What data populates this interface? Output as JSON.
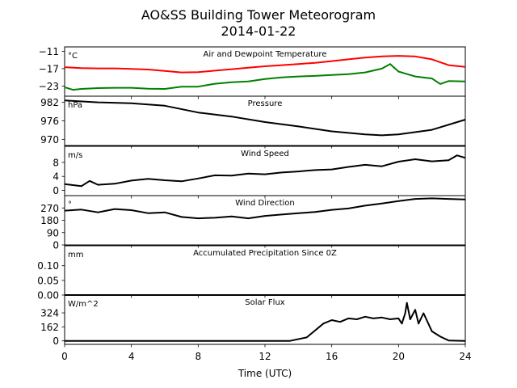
{
  "figure": {
    "title": "AO&SS Building Tower Meteorogram",
    "subtitle": "2014-01-22"
  },
  "chart_data": {
    "type": "line",
    "x_axis": {
      "label": "Time (UTC)",
      "range": [
        0,
        24
      ],
      "ticks": [
        0,
        4,
        8,
        12,
        16,
        20,
        24
      ],
      "tick_labels": [
        "0",
        "4",
        "8",
        "12",
        "16",
        "20",
        "24"
      ]
    },
    "colors": {
      "air": "#ff0000",
      "dewpoint": "#008000",
      "default": "#000000"
    },
    "panels": [
      {
        "id": "temperature",
        "title": "Air and Dewpoint Temperature",
        "unit": "°C",
        "ylim": [
          -26.5,
          -9.5
        ],
        "yticks": [
          -11,
          -17,
          -23
        ],
        "ytick_labels": [
          "−11",
          "−17",
          "−23"
        ],
        "series": [
          {
            "key": "air",
            "color": "#ff0000",
            "x": [
              0,
              1,
              2,
              3,
              4,
              5,
              6,
              7,
              8,
              9,
              10,
              11,
              12,
              13,
              14,
              15,
              16,
              17,
              18,
              19,
              20,
              21,
              22,
              23,
              24
            ],
            "y": [
              -16.5,
              -16.8,
              -16.9,
              -16.9,
              -17.1,
              -17.3,
              -17.8,
              -18.3,
              -18.2,
              -17.7,
              -17.2,
              -16.7,
              -16.2,
              -15.8,
              -15.4,
              -15.0,
              -14.4,
              -13.8,
              -13.2,
              -12.8,
              -12.6,
              -12.8,
              -13.8,
              -15.8,
              -16.4
            ]
          },
          {
            "key": "dewpoint",
            "color": "#008000",
            "x": [
              0,
              0.5,
              1,
              2,
              3,
              4,
              5,
              6,
              7,
              8,
              9,
              10,
              11,
              12,
              13,
              14,
              15,
              16,
              17,
              18,
              19,
              19.5,
              20,
              21,
              22,
              22.5,
              23,
              24
            ],
            "y": [
              -23.4,
              -24.3,
              -24.0,
              -23.7,
              -23.6,
              -23.6,
              -23.9,
              -24.0,
              -23.2,
              -23.2,
              -22.2,
              -21.7,
              -21.4,
              -20.6,
              -20.0,
              -19.7,
              -19.5,
              -19.2,
              -18.9,
              -18.3,
              -17.0,
              -15.4,
              -18.0,
              -19.7,
              -20.4,
              -22.3,
              -21.3,
              -21.4
            ]
          }
        ]
      },
      {
        "id": "pressure",
        "title": "Pressure",
        "unit": "hPa",
        "ylim": [
          968,
          984
        ],
        "yticks": [
          982,
          976,
          970
        ],
        "ytick_labels": [
          "982",
          "976",
          "970"
        ],
        "series": [
          {
            "key": "pressure",
            "color": "#000000",
            "x": [
              0,
              2,
              4,
              6,
              8,
              10,
              12,
              14,
              16,
              18,
              19,
              20,
              22,
              24
            ],
            "y": [
              982.6,
              982.0,
              981.7,
              980.9,
              978.7,
              977.4,
              975.6,
              974.2,
              972.6,
              971.6,
              971.3,
              971.6,
              973.1,
              976.4
            ]
          }
        ]
      },
      {
        "id": "wind_speed",
        "title": "Wind Speed",
        "unit": "m/s",
        "ylim": [
          -1.5,
          12.6
        ],
        "yticks": [
          8,
          4,
          0
        ],
        "ytick_labels": [
          "8",
          "4",
          "0"
        ],
        "series": [
          {
            "key": "wind_speed",
            "color": "#000000",
            "x": [
              0,
              1,
              1.5,
              2,
              3,
              4,
              5,
              6,
              7,
              8,
              9,
              10,
              11,
              12,
              13,
              14,
              15,
              16,
              17,
              18,
              19,
              20,
              21,
              22,
              23,
              23.5,
              24
            ],
            "y": [
              1.8,
              1.2,
              2.7,
              1.6,
              1.9,
              2.8,
              3.3,
              2.9,
              2.6,
              3.4,
              4.3,
              4.2,
              4.8,
              4.6,
              5.1,
              5.4,
              5.8,
              6.0,
              6.7,
              7.3,
              6.9,
              8.2,
              8.9,
              8.3,
              8.6,
              10.0,
              9.3
            ]
          }
        ]
      },
      {
        "id": "wind_direction",
        "title": "Wind Direction",
        "unit": "°",
        "ylim": [
          0,
          360
        ],
        "yticks": [
          270,
          180,
          90,
          0
        ],
        "ytick_labels": [
          "270",
          "180",
          "90",
          "0"
        ],
        "series": [
          {
            "key": "wind_direction",
            "color": "#000000",
            "x": [
              0,
              1,
              2,
              3,
              4,
              5,
              6,
              7,
              8,
              9,
              10,
              11,
              12,
              13,
              14,
              15,
              16,
              17,
              18,
              19,
              20,
              21,
              22,
              23,
              24
            ],
            "y": [
              250,
              258,
              238,
              262,
              254,
              232,
              238,
              204,
              194,
              198,
              208,
              194,
              212,
              222,
              232,
              240,
              256,
              266,
              287,
              302,
              320,
              336,
              340,
              336,
              332
            ]
          }
        ]
      },
      {
        "id": "precipitation",
        "title": "Accumulated Precipitation Since 0Z",
        "unit": "mm",
        "ylim": [
          0,
          0.168
        ],
        "yticks": [
          0.1,
          0.05,
          0.0
        ],
        "ytick_labels": [
          "0.10",
          "0.05",
          "0.00"
        ],
        "series": [
          {
            "key": "precipitation",
            "color": "#000000",
            "x": [
              0,
              24
            ],
            "y": [
              0,
              0
            ]
          }
        ]
      },
      {
        "id": "solar_flux",
        "title": "Solar Flux",
        "unit": "W/m^2",
        "ylim": [
          -40,
          530
        ],
        "yticks": [
          324,
          162,
          0
        ],
        "ytick_labels": [
          "324",
          "162",
          "0"
        ],
        "series": [
          {
            "key": "solar_flux",
            "color": "#000000",
            "x": [
              0,
              13.5,
              14.5,
              15,
              15.5,
              16,
              16.5,
              17,
              17.5,
              18,
              18.5,
              19,
              19.5,
              20,
              20.2,
              20.4,
              20.5,
              20.7,
              21,
              21.2,
              21.5,
              22,
              22.5,
              23,
              24
            ],
            "y": [
              0,
              0,
              40,
              120,
              200,
              240,
              220,
              260,
              250,
              280,
              260,
              270,
              250,
              260,
              200,
              320,
              440,
              250,
              360,
              200,
              320,
              110,
              50,
              5,
              0
            ]
          }
        ]
      }
    ]
  }
}
